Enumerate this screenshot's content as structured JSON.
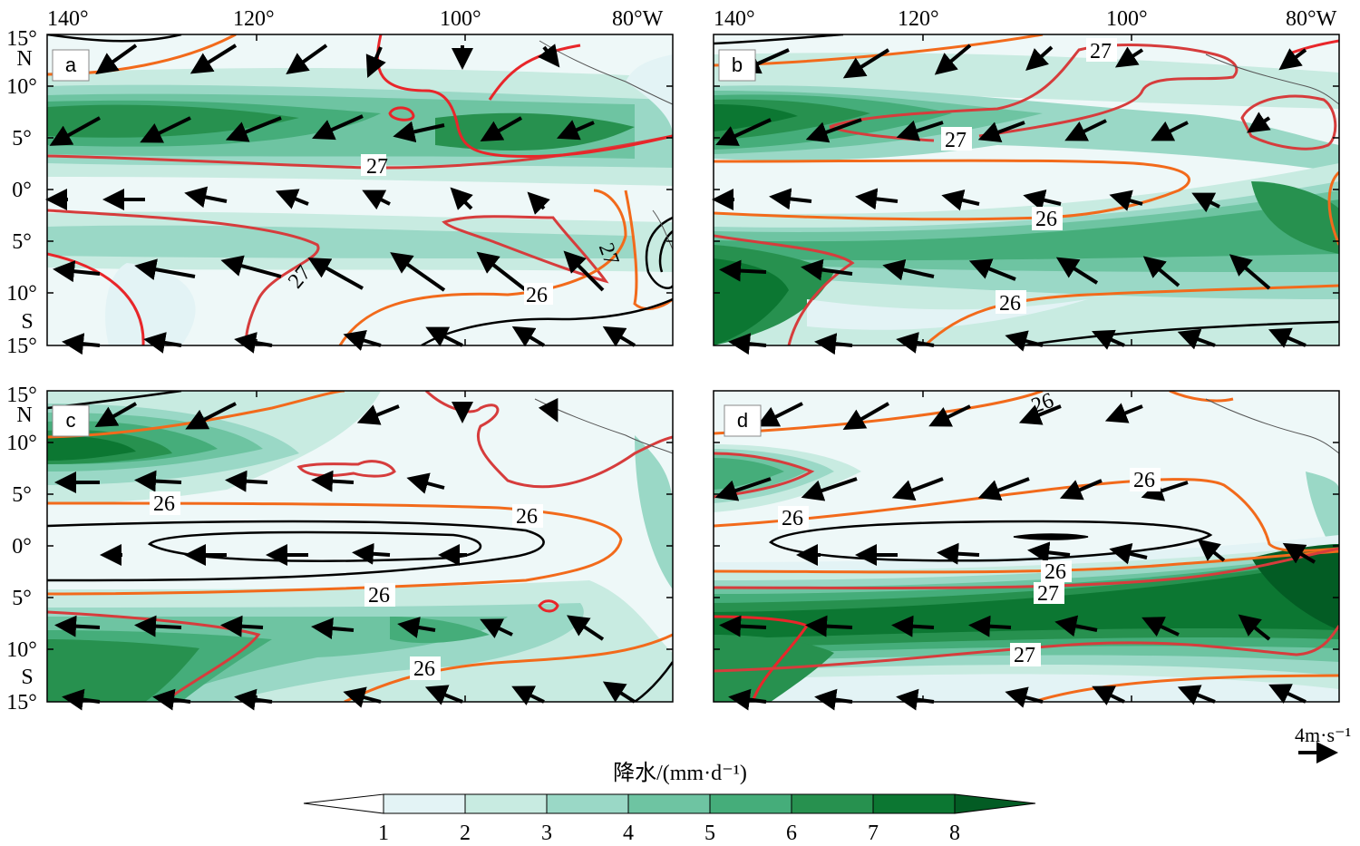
{
  "figure": {
    "axes": {
      "top_lon_labels": [
        "140°",
        "120°",
        "100°",
        "80°W"
      ],
      "lat_labels": [
        "15°",
        "N",
        "10°",
        "5°",
        "0°",
        "5°",
        "10°",
        "S",
        "15°"
      ]
    },
    "panels": [
      {
        "id": "a",
        "label": "a",
        "contour_labels": [
          "27",
          "27",
          "27",
          "26"
        ]
      },
      {
        "id": "b",
        "label": "b",
        "contour_labels": [
          "27",
          "27",
          "26",
          "26"
        ]
      },
      {
        "id": "c",
        "label": "c",
        "contour_labels": [
          "26",
          "26",
          "26",
          "26"
        ]
      },
      {
        "id": "d",
        "label": "d",
        "contour_labels": [
          "26",
          "26",
          "26",
          "26",
          "27",
          "27"
        ]
      }
    ],
    "vector_key": {
      "label": "4m·s⁻¹"
    },
    "colorbar": {
      "title": "降水/(mm·d⁻¹)",
      "ticks": [
        "1",
        "2",
        "3",
        "4",
        "5",
        "6",
        "7",
        "8"
      ],
      "colors": [
        "#ffffff",
        "#e3f3f5",
        "#c8ebe1",
        "#9ad8c6",
        "#6ec4a2",
        "#45ad7a",
        "#27914f",
        "#0c7732",
        "#035c24"
      ]
    },
    "line_colors": {
      "sst_27": "#d63c3c",
      "sst_26": "#f26a1b",
      "sst_cool": "#000000",
      "wind": "#000000"
    }
  }
}
